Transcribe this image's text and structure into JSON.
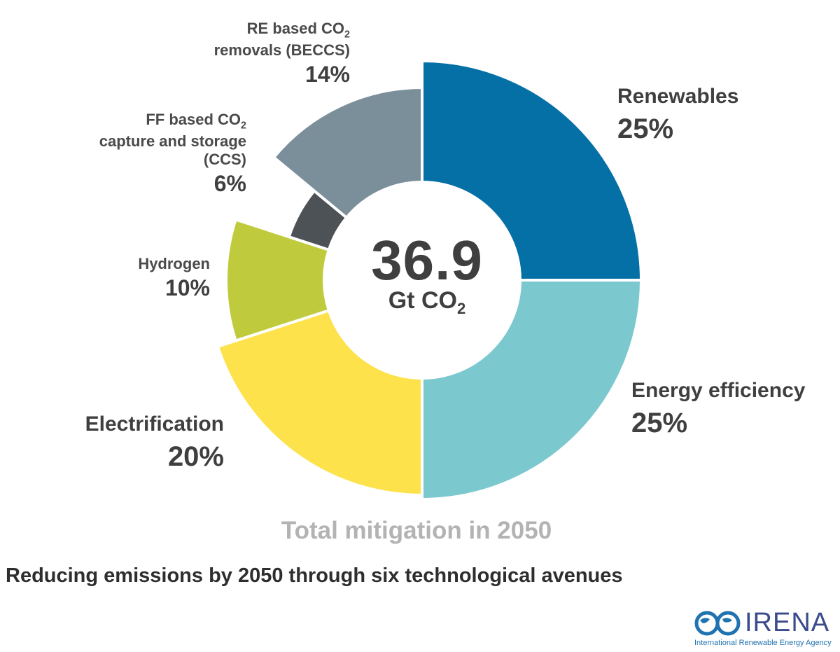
{
  "chart_data": {
    "type": "pie",
    "style": "donut",
    "title": "Total mitigation in 2050",
    "center_value": "36.9",
    "center_unit": "Gt CO",
    "center_unit_sub": "2",
    "slices": [
      {
        "label": "Renewables",
        "value": 25,
        "display": "25%",
        "color": "#0470a6"
      },
      {
        "label": "Energy efficiency",
        "value": 25,
        "display": "25%",
        "color": "#7cc8cf"
      },
      {
        "label": "Electrification",
        "value": 20,
        "display": "20%",
        "color": "#fde24c"
      },
      {
        "label": "Hydrogen",
        "value": 10,
        "display": "10%",
        "color": "#bfcb3c"
      },
      {
        "label": "FF based CO2 capture and storage (CCS)",
        "value": 6,
        "display": "6%",
        "color": "#4d5256"
      },
      {
        "label": "RE based CO2 removals (BECCS)",
        "value": 14,
        "display": "14%",
        "color": "#7b8f9b"
      }
    ]
  },
  "labels": {
    "renewables": {
      "name": "Renewables",
      "pct": "25%"
    },
    "efficiency": {
      "name": "Energy efficiency",
      "pct": "25%"
    },
    "electrification": {
      "name": "Electrification",
      "pct": "20%"
    },
    "hydrogen": {
      "name": "Hydrogen",
      "pct": "10%"
    },
    "ccs": {
      "line1a": "FF based CO",
      "line1sub": "2",
      "line2": "capture and storage",
      "line3": "(CCS)",
      "pct": "6%"
    },
    "beccs": {
      "line1a": "RE based CO",
      "line1sub": "2",
      "line2": "removals (BECCS)",
      "pct": "14%"
    }
  },
  "subtitle": "Reducing emissions by 2050 through six technological avenues",
  "logo": {
    "name": "IRENA",
    "tagline": "International Renewable Energy Agency"
  }
}
